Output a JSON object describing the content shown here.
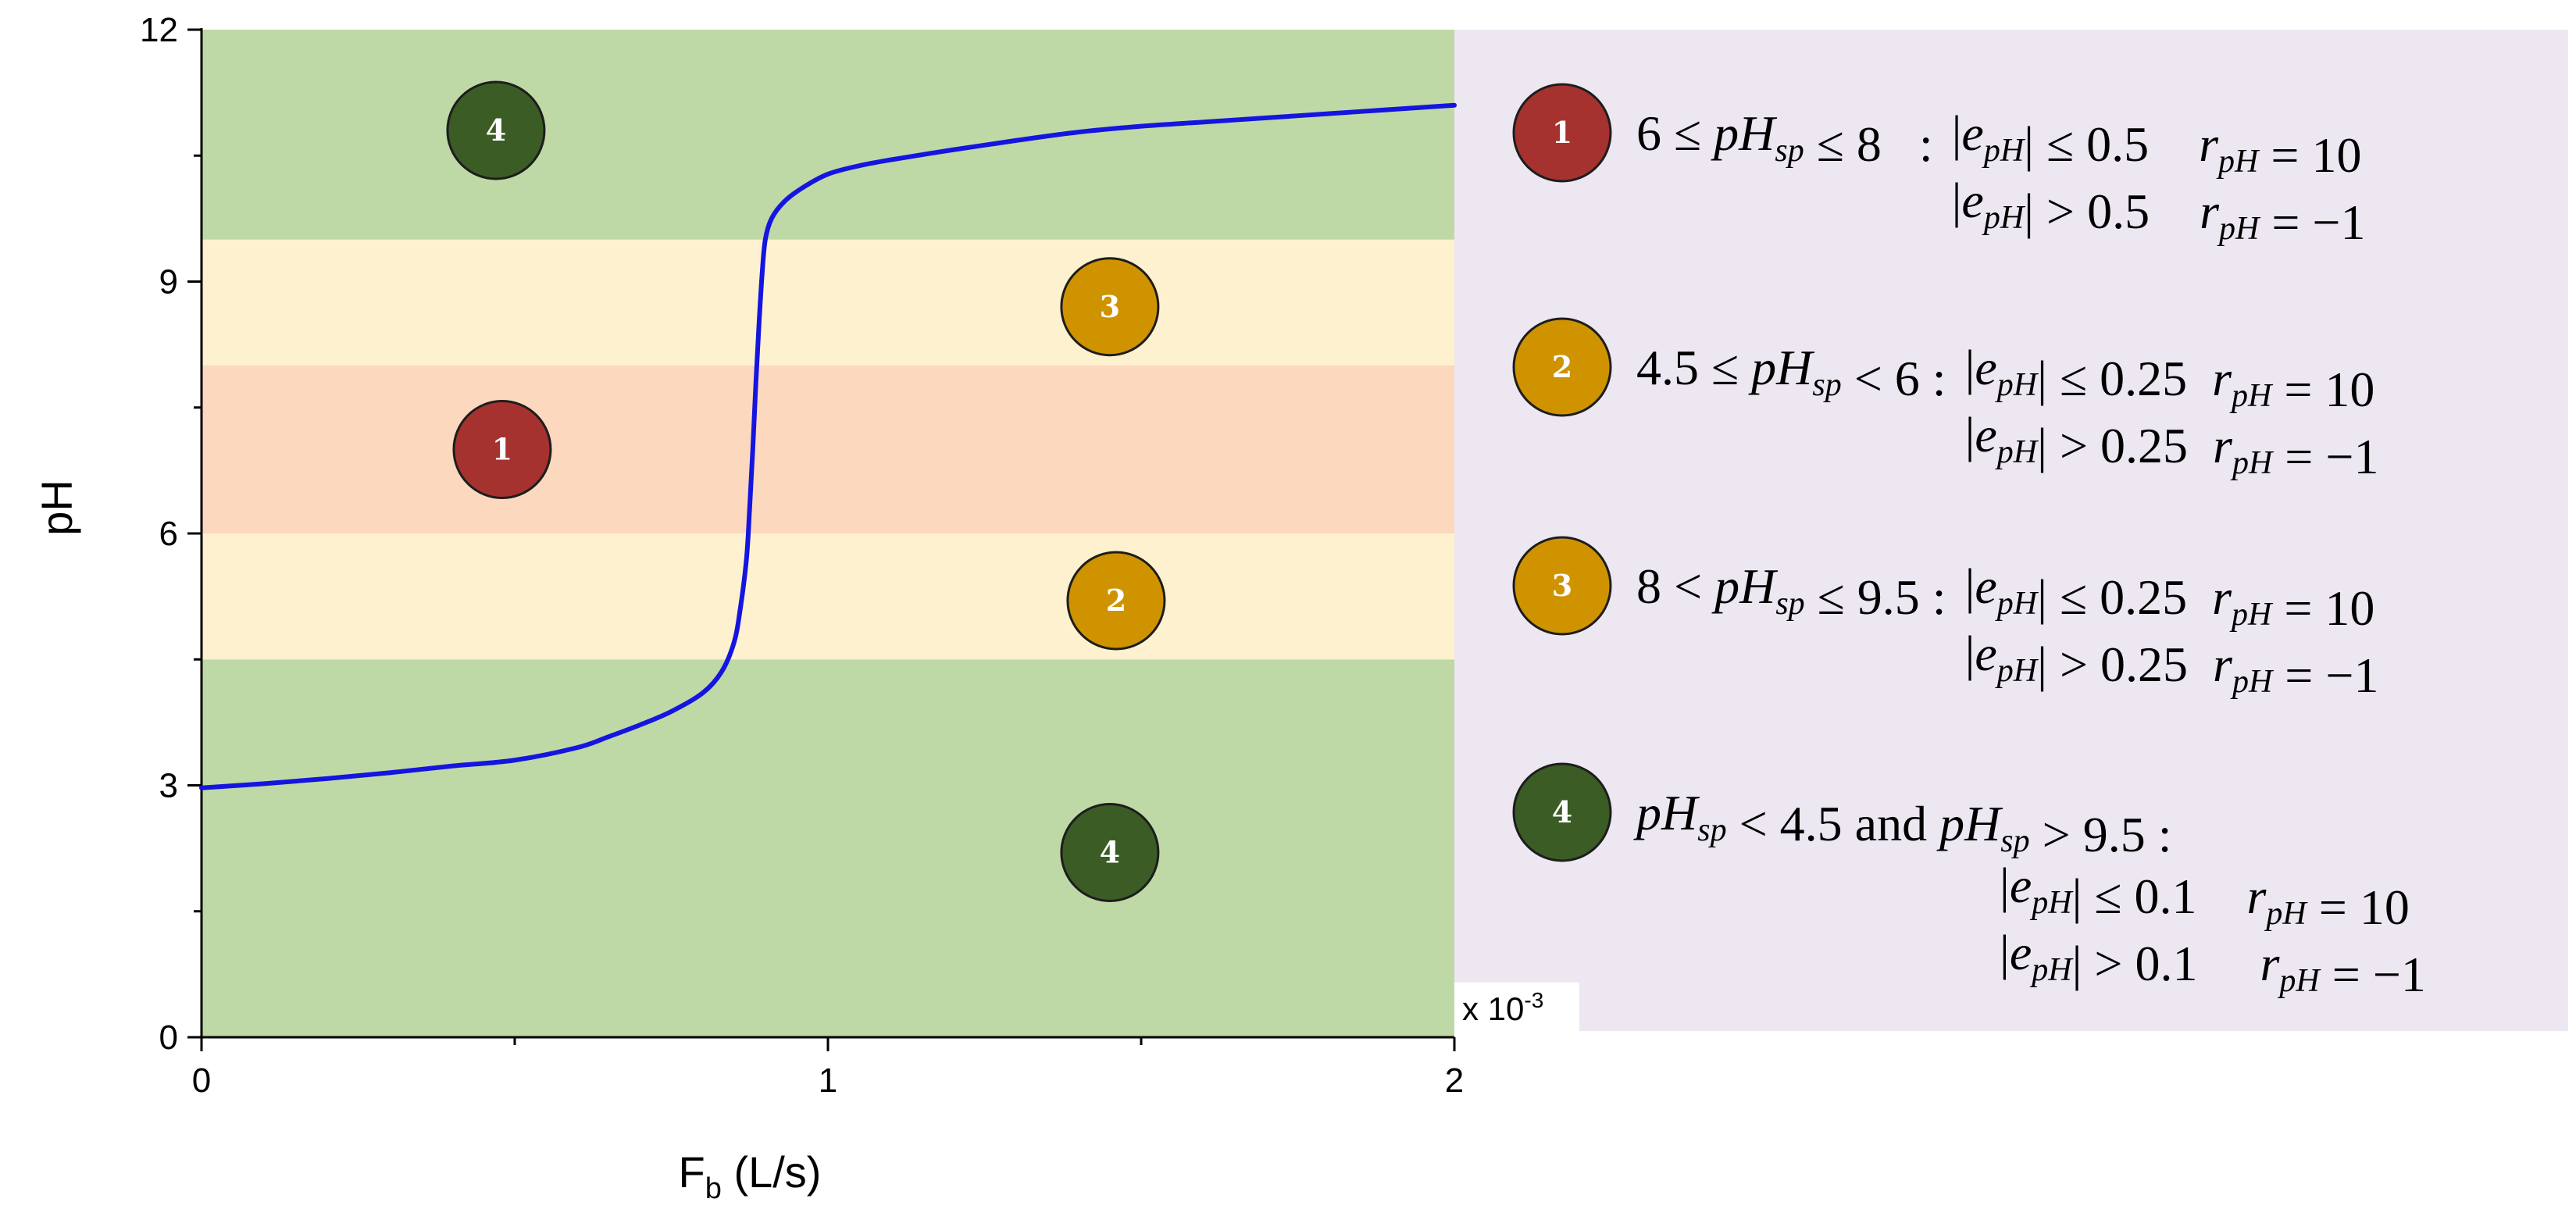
{
  "chart_data": {
    "type": "line",
    "title": "",
    "xlabel": "F",
    "xlabel_sub": "b",
    "xlabel_unit": " (L/s)",
    "ylabel": "pH",
    "x_multiplier": "x 10",
    "x_multiplier_exp": "-3",
    "xlim": [
      0,
      2
    ],
    "ylim": [
      0,
      12
    ],
    "x_ticks": [
      "0",
      "1",
      "2"
    ],
    "y_ticks": [
      "0",
      "3",
      "6",
      "9",
      "12"
    ],
    "colors": {
      "curve": "#1515e0",
      "zone_green": "#bfd9a6",
      "zone_yellow": "#fdf1cf",
      "zone_orange": "#fcd8bf",
      "legend_bg": "#ece7f1",
      "badge_red": "#a5322e",
      "badge_gold": "#cf9300",
      "badge_green": "#3b5c25"
    },
    "zones": [
      {
        "y0": 0,
        "y1": 4.5,
        "fill": "green"
      },
      {
        "y0": 4.5,
        "y1": 6,
        "fill": "yellow"
      },
      {
        "y0": 6,
        "y1": 8,
        "fill": "orange"
      },
      {
        "y0": 8,
        "y1": 9.5,
        "fill": "yellow"
      },
      {
        "y0": 9.5,
        "y1": 12,
        "fill": "green"
      }
    ],
    "series": [
      {
        "x": [
          0,
          0.1,
          0.2,
          0.3,
          0.4,
          0.5,
          0.6,
          0.65,
          0.7,
          0.75,
          0.8,
          0.83,
          0.85,
          0.86,
          0.87,
          0.875,
          0.88,
          0.885,
          0.89,
          0.895,
          0.9,
          0.91,
          0.93,
          0.96,
          1.0,
          1.05,
          1.1,
          1.2,
          1.3,
          1.4,
          1.5,
          1.6,
          1.7,
          1.8,
          1.9,
          2.0
        ],
        "y": [
          2.97,
          3.02,
          3.08,
          3.15,
          3.23,
          3.3,
          3.45,
          3.58,
          3.72,
          3.88,
          4.1,
          4.35,
          4.7,
          5.1,
          5.7,
          6.3,
          7.0,
          7.8,
          8.5,
          9.1,
          9.5,
          9.75,
          9.95,
          10.12,
          10.28,
          10.38,
          10.45,
          10.57,
          10.68,
          10.78,
          10.85,
          10.9,
          10.95,
          11.0,
          11.05,
          11.1
        ]
      }
    ],
    "markers": [
      {
        "label": "4",
        "x": 0.47,
        "y": 10.8,
        "color": "badge_green"
      },
      {
        "label": "3",
        "x": 1.45,
        "y": 8.7,
        "color": "badge_gold"
      },
      {
        "label": "1",
        "x": 0.48,
        "y": 7.0,
        "color": "badge_red"
      },
      {
        "label": "2",
        "x": 1.46,
        "y": 5.2,
        "color": "badge_gold"
      },
      {
        "label": "4",
        "x": 1.45,
        "y": 2.2,
        "color": "badge_green"
      }
    ],
    "legend": {
      "placement": "right",
      "rules": [
        {
          "badge": "1",
          "color": "badge_red",
          "condition": "6 ≤ pHsp ≤ 8   :",
          "line1": "|epH| ≤ 0.5    rpH = 10",
          "line2": "|epH| > 0.5    rpH = −1"
        },
        {
          "badge": "2",
          "color": "badge_gold",
          "condition": "4.5 ≤ pHsp < 6 :",
          "line1": "|epH| ≤ 0.25  rpH = 10",
          "line2": "|epH| > 0.25  rpH = −1"
        },
        {
          "badge": "3",
          "color": "badge_gold",
          "condition": "8 < pHsp ≤ 9.5 :",
          "line1": "|epH| ≤ 0.25  rpH = 10",
          "line2": "|epH| > 0.25  rpH = −1"
        },
        {
          "badge": "4",
          "color": "badge_green",
          "condition": "pHsp < 4.5 and pHsp > 9.5 :",
          "line1": "|epH| ≤ 0.1    rpH = 10",
          "line2": "|epH| > 0.1     rpH = −1"
        }
      ]
    }
  }
}
